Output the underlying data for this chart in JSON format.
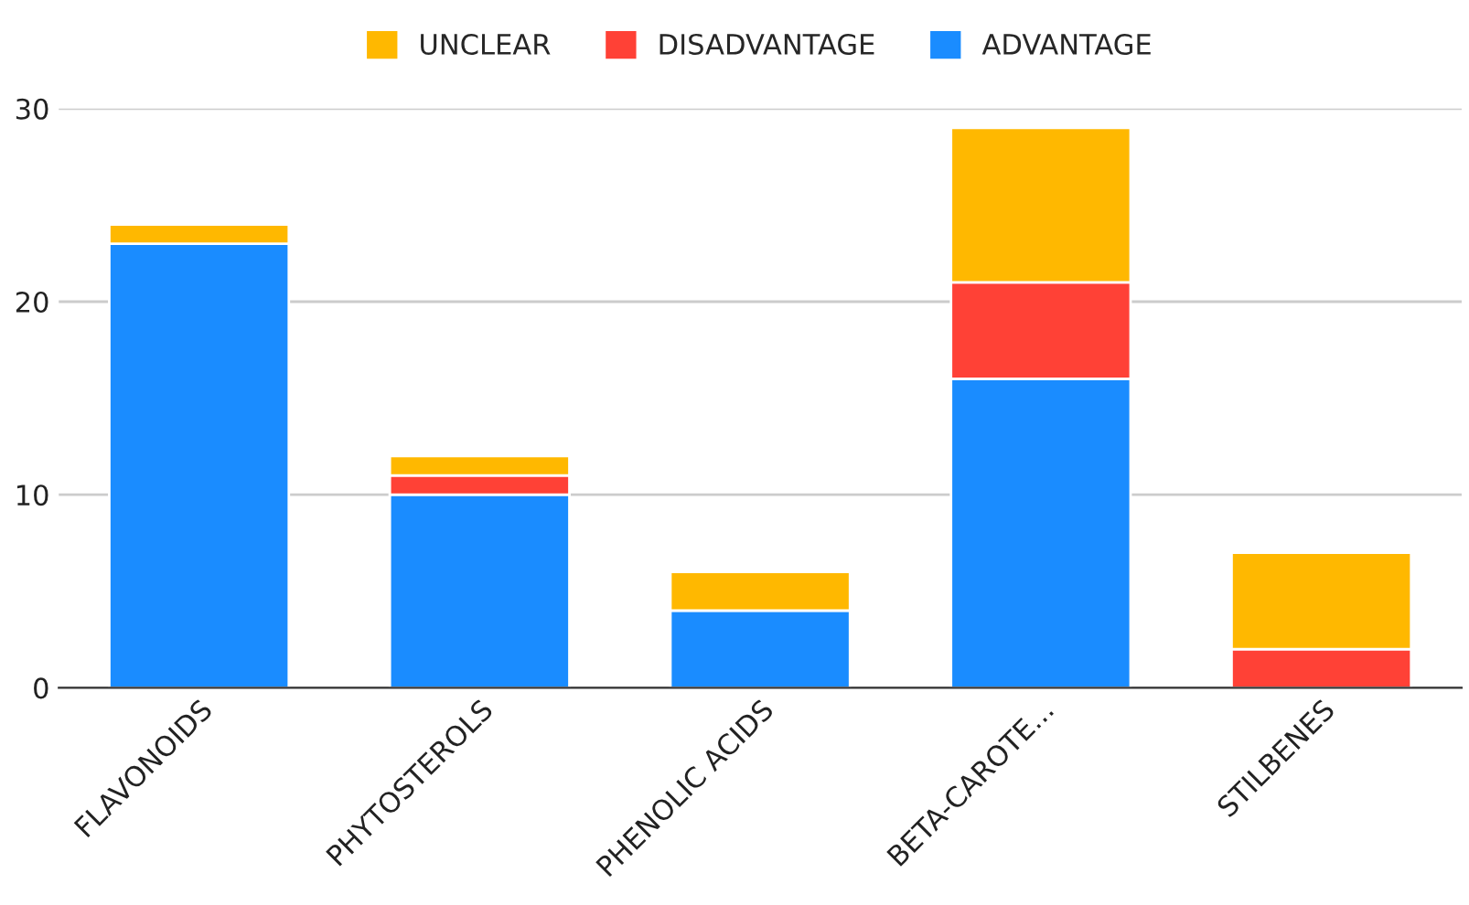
{
  "chart_data": {
    "type": "bar",
    "stacked": true,
    "categories": [
      "FLAVONOIDS",
      "PHYTOSTEROLS",
      "PHENOLIC ACIDS",
      "BETA-CAROTE...",
      "STILBENES"
    ],
    "series": [
      {
        "name": "ADVANTAGE",
        "color": "#1a8cff",
        "values": [
          23,
          10,
          4,
          16,
          0
        ]
      },
      {
        "name": "DISADVANTAGE",
        "color": "#ff4136",
        "values": [
          0,
          1,
          0,
          5,
          2
        ]
      },
      {
        "name": "UNCLEAR",
        "color": "#ffb800",
        "values": [
          1,
          1,
          2,
          8,
          5
        ]
      }
    ],
    "ylim": [
      0,
      30
    ],
    "yticks": [
      0,
      10,
      20,
      30
    ],
    "grid": "y",
    "legend": "top"
  }
}
